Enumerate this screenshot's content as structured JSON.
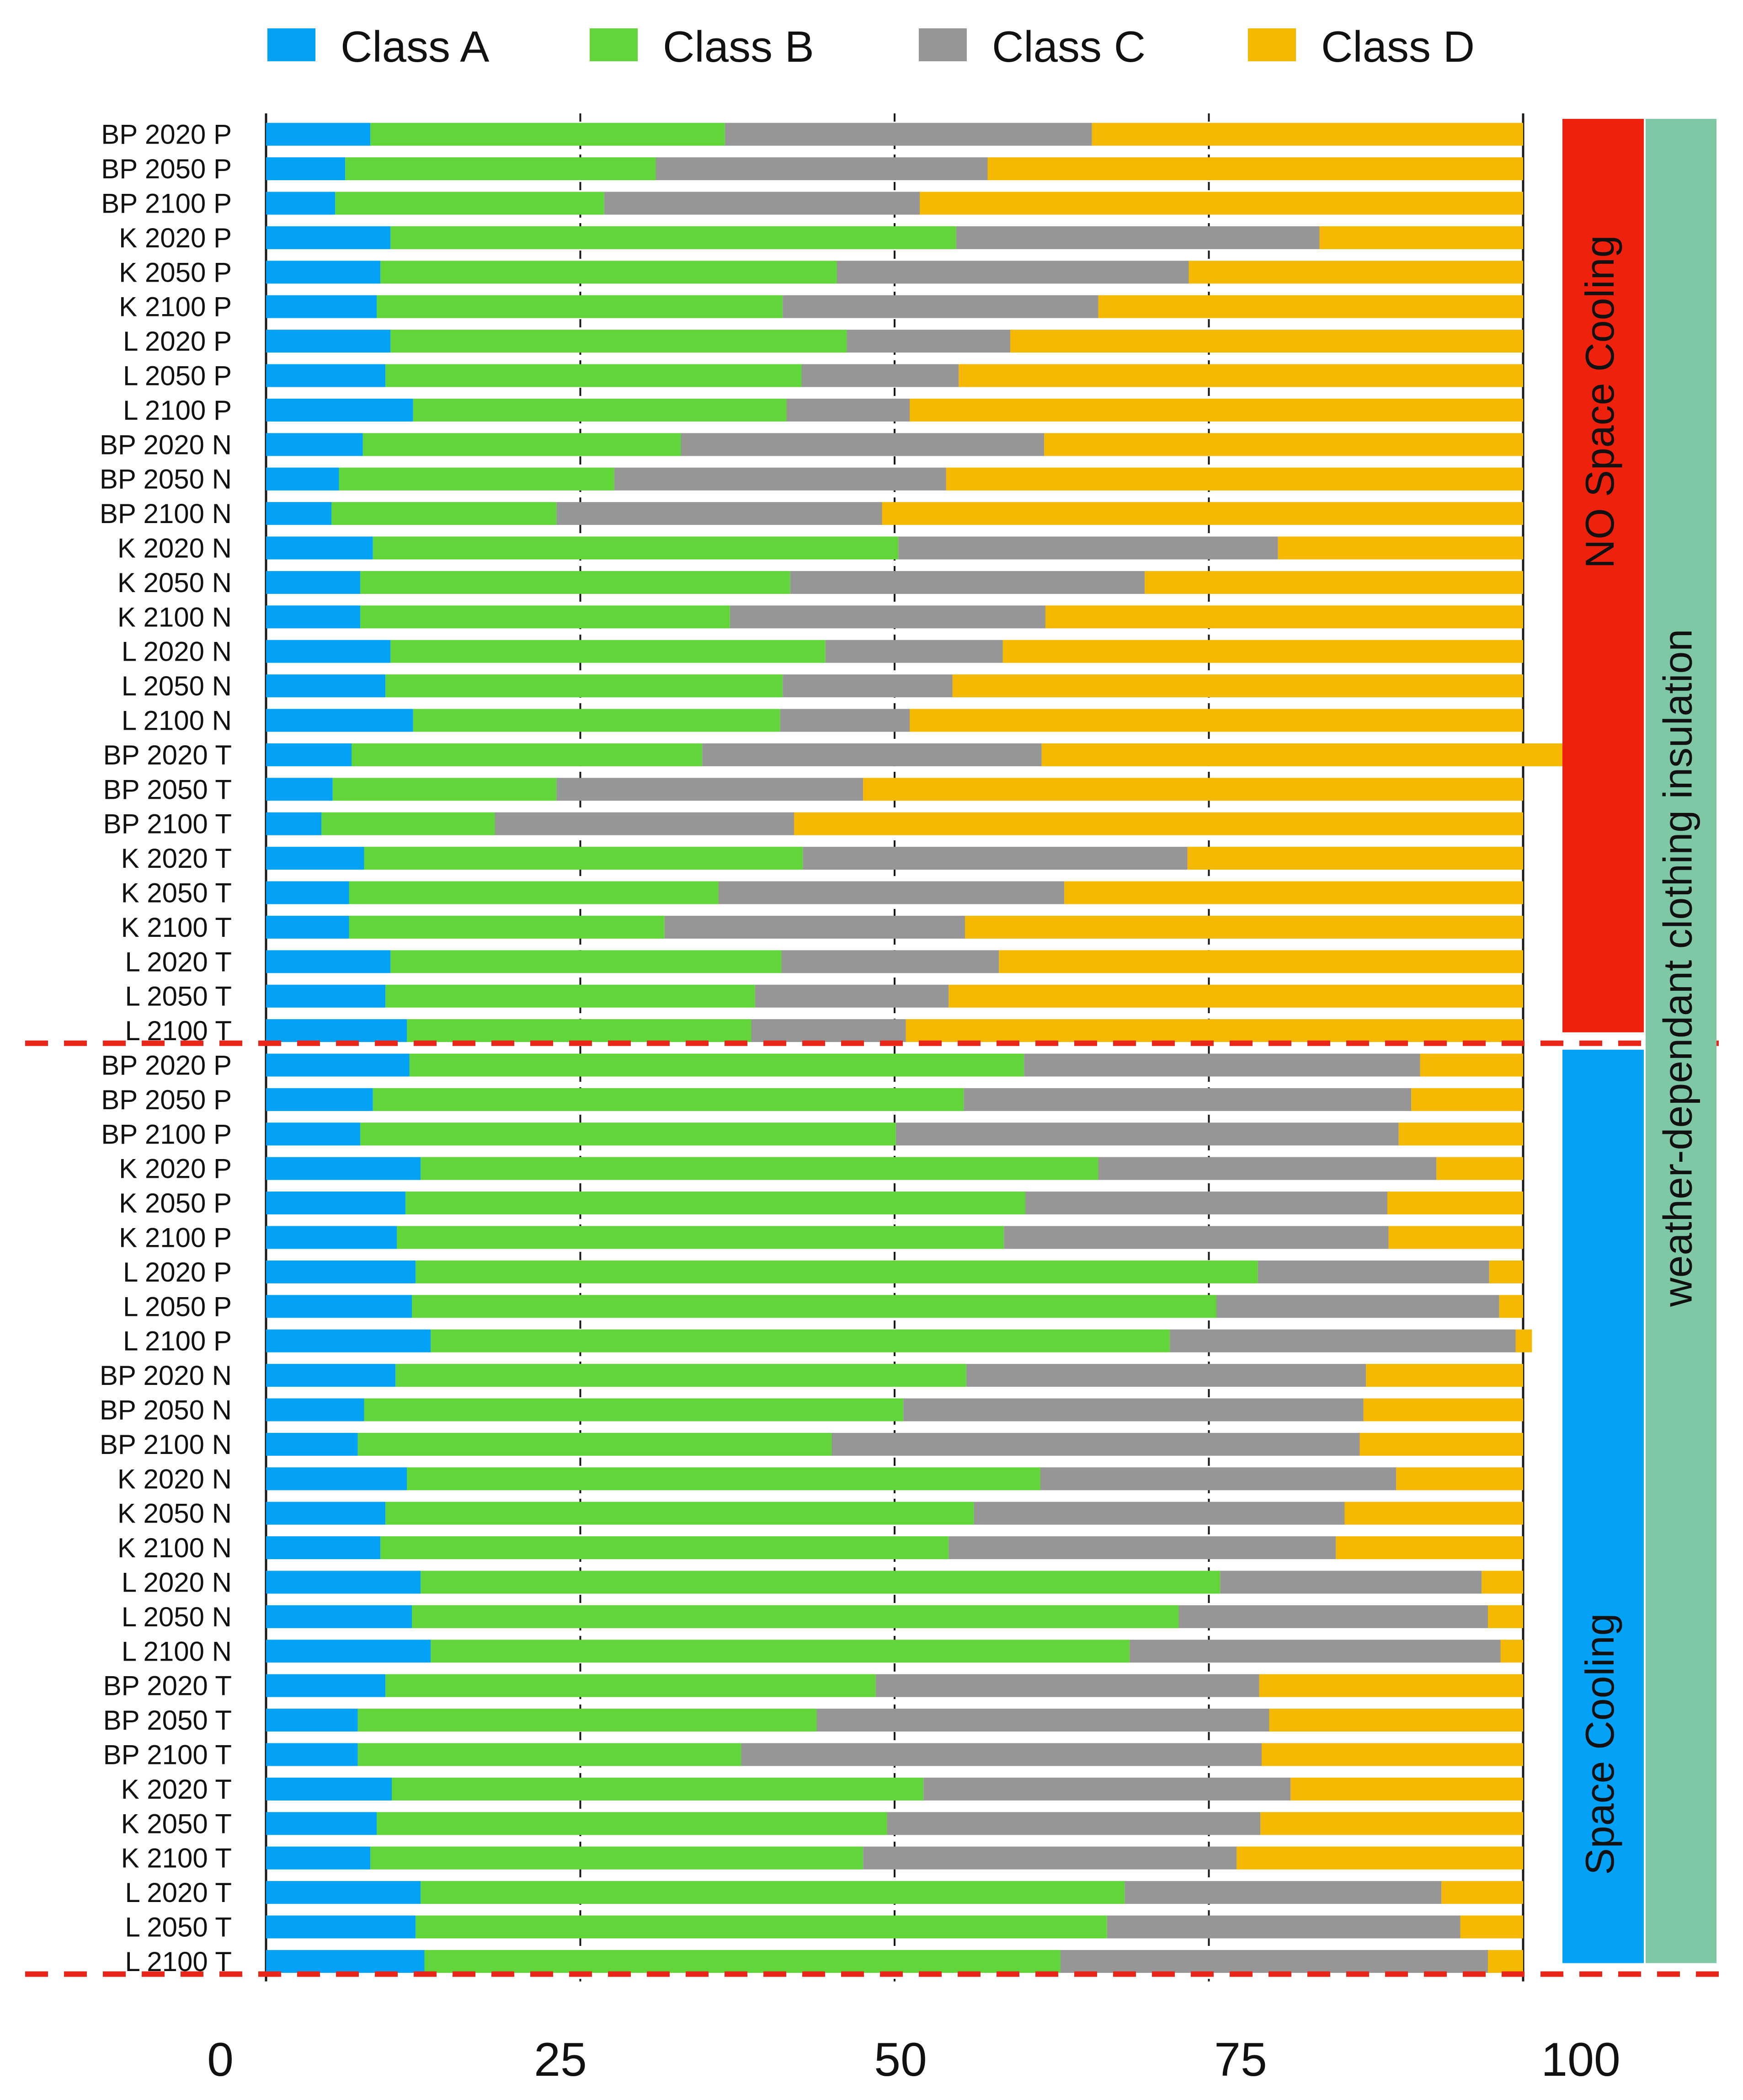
{
  "chart_data": {
    "type": "bar",
    "stacked": true,
    "orientation": "horizontal",
    "xlim": [
      0,
      100
    ],
    "x_ticks": [
      "0",
      "25",
      "50",
      "75",
      "100"
    ],
    "gridlines": [
      25,
      50,
      75
    ],
    "legend_position": "top",
    "series": [
      {
        "name": "Class A",
        "color": "#03a2f7"
      },
      {
        "name": "Class B",
        "color": "#61d53a"
      },
      {
        "name": "Class C",
        "color": "#969696"
      },
      {
        "name": "Class D",
        "color": "#f5b800"
      }
    ],
    "groups": [
      {
        "label": "NO Space Cooling",
        "color": "#ee220c",
        "rows": [
          0,
          26
        ]
      },
      {
        "label": "Space Cooling",
        "color": "#03a2f7",
        "rows": [
          27,
          53
        ]
      }
    ],
    "side_label": {
      "label": "weather-dependant clothing insulation",
      "color": "#7ec8a6"
    },
    "categories": [
      "BP 2020 P",
      "BP 2050 P",
      "BP 2100 P",
      "K 2020 P",
      "K 2050 P",
      "K 2100 P",
      "L 2020 P",
      "L 2050 P",
      "L 2100 P",
      "BP 2020 N",
      "BP 2050 N",
      "BP 2100 N",
      "K 2020 N",
      "K 2050 N",
      "K 2100 N",
      "L 2020 N",
      "L 2050 N",
      "L 2100 N",
      "BP 2020 T",
      "BP 2050 T",
      "BP 2100 T",
      "K 2020 T",
      "K 2050 T",
      "K 2100 T",
      "L 2020 T",
      "L 2050 T",
      "L 2100 T",
      "BP 2020 P",
      "BP 2050 P",
      "BP 2100 P",
      "K 2020 P",
      "K 2050 P",
      "K 2100 P",
      "L 2020 P",
      "L 2050 P",
      "L 2100 P",
      "BP 2020 N",
      "BP 2050 N",
      "BP 2100 N",
      "K 2020 N",
      "K 2050 N",
      "K 2100 N",
      "L 2020 N",
      "L 2050 N",
      "L 2100 N",
      "BP 2020 T",
      "BP 2050 T",
      "BP 2100 T",
      "K 2020 T",
      "K 2050 T",
      "K 2100 T",
      "L 2020 T",
      "L 2050 T",
      "L 2100 T"
    ],
    "values": [
      [
        8.3,
        28.2,
        29.2,
        34.3
      ],
      [
        6.3,
        24.7,
        26.4,
        42.6
      ],
      [
        5.5,
        21.4,
        25.1,
        48.0
      ],
      [
        9.9,
        45.0,
        28.9,
        16.2
      ],
      [
        9.1,
        36.3,
        28.0,
        26.6
      ],
      [
        8.8,
        32.3,
        25.1,
        33.8
      ],
      [
        9.9,
        36.3,
        13.0,
        40.8
      ],
      [
        9.5,
        33.1,
        12.5,
        44.9
      ],
      [
        11.7,
        29.7,
        9.8,
        48.8
      ],
      [
        7.7,
        25.3,
        28.9,
        38.1
      ],
      [
        5.8,
        21.9,
        26.4,
        45.9
      ],
      [
        5.2,
        17.9,
        25.9,
        51.0
      ],
      [
        8.5,
        41.8,
        30.2,
        19.5
      ],
      [
        7.5,
        34.2,
        28.2,
        30.1
      ],
      [
        7.5,
        29.4,
        25.1,
        38.0
      ],
      [
        9.9,
        34.6,
        14.1,
        41.4
      ],
      [
        9.5,
        31.6,
        13.5,
        45.4
      ],
      [
        11.7,
        29.2,
        10.3,
        48.8
      ],
      [
        6.8,
        27.9,
        27.0,
        45.4
      ],
      [
        5.3,
        17.8,
        24.4,
        52.5
      ],
      [
        4.4,
        13.8,
        23.8,
        58.0
      ],
      [
        7.8,
        34.9,
        30.6,
        26.7
      ],
      [
        6.6,
        29.4,
        27.5,
        36.5
      ],
      [
        6.6,
        25.1,
        23.9,
        44.4
      ],
      [
        9.9,
        31.1,
        17.3,
        41.7
      ],
      [
        9.5,
        29.4,
        15.4,
        45.7
      ],
      [
        11.2,
        27.4,
        12.3,
        49.1
      ],
      [
        11.4,
        48.9,
        31.5,
        8.2
      ],
      [
        8.5,
        47.0,
        35.6,
        8.9
      ],
      [
        7.5,
        42.6,
        40.0,
        9.9
      ],
      [
        12.3,
        53.9,
        26.9,
        6.9
      ],
      [
        11.1,
        49.3,
        28.8,
        10.8
      ],
      [
        10.4,
        48.3,
        30.6,
        10.7
      ],
      [
        11.9,
        67.0,
        18.4,
        2.7
      ],
      [
        11.6,
        64.0,
        22.5,
        1.9
      ],
      [
        13.1,
        58.8,
        27.5,
        1.3
      ],
      [
        10.3,
        45.4,
        31.8,
        12.5
      ],
      [
        7.8,
        42.9,
        36.6,
        12.7
      ],
      [
        7.3,
        37.7,
        42.0,
        13.0
      ],
      [
        11.2,
        50.4,
        28.3,
        10.1
      ],
      [
        9.5,
        46.8,
        29.5,
        14.2
      ],
      [
        9.1,
        45.2,
        30.8,
        14.9
      ],
      [
        12.3,
        63.6,
        20.8,
        3.3
      ],
      [
        11.6,
        61.0,
        24.6,
        2.8
      ],
      [
        13.1,
        55.6,
        29.5,
        1.8
      ],
      [
        9.5,
        39.0,
        30.5,
        21.0
      ],
      [
        7.3,
        36.5,
        36.0,
        20.2
      ],
      [
        7.3,
        30.5,
        41.4,
        20.8
      ],
      [
        10.0,
        42.3,
        29.2,
        18.5
      ],
      [
        8.8,
        40.6,
        29.7,
        20.9
      ],
      [
        8.3,
        39.2,
        29.7,
        22.8
      ],
      [
        12.3,
        56.0,
        25.2,
        6.5
      ],
      [
        11.9,
        55.0,
        28.1,
        5.0
      ],
      [
        12.6,
        50.6,
        34.0,
        2.8
      ]
    ]
  }
}
